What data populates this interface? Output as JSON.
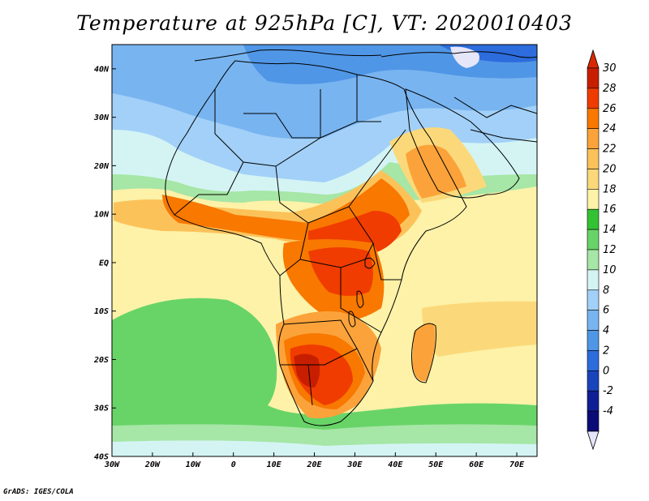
{
  "title": "Temperature at 925hPa [C], VT: 2020010403",
  "credit": "GrADS: IGES/COLA",
  "map": {
    "lon_range": [
      -30,
      75
    ],
    "lat_range": [
      -40,
      45
    ],
    "lon_ticks": [
      {
        "value": -30,
        "label": "30W"
      },
      {
        "value": -20,
        "label": "20W"
      },
      {
        "value": -10,
        "label": "10W"
      },
      {
        "value": 0,
        "label": "0"
      },
      {
        "value": 10,
        "label": "10E"
      },
      {
        "value": 20,
        "label": "20E"
      },
      {
        "value": 30,
        "label": "30E"
      },
      {
        "value": 40,
        "label": "40E"
      },
      {
        "value": 50,
        "label": "50E"
      },
      {
        "value": 60,
        "label": "60E"
      },
      {
        "value": 70,
        "label": "70E"
      }
    ],
    "lat_ticks": [
      {
        "value": 40,
        "label": "40N"
      },
      {
        "value": 30,
        "label": "30N"
      },
      {
        "value": 20,
        "label": "20N"
      },
      {
        "value": 10,
        "label": "10N"
      },
      {
        "value": 0,
        "label": "EQ"
      },
      {
        "value": -10,
        "label": "10S"
      },
      {
        "value": -20,
        "label": "20S"
      },
      {
        "value": -30,
        "label": "30S"
      },
      {
        "value": -40,
        "label": "40S"
      }
    ]
  },
  "colorbar": {
    "levels": [
      "30",
      "28",
      "26",
      "24",
      "22",
      "20",
      "18",
      "16",
      "14",
      "12",
      "10",
      "8",
      "6",
      "4",
      "2",
      "0",
      "-2",
      "-4"
    ],
    "colors": [
      "#c81e00",
      "#f03c00",
      "#f87800",
      "#fba33a",
      "#fcc25a",
      "#fbd97a",
      "#fdf2a8",
      "#33c233",
      "#68d468",
      "#a6e6a6",
      "#d4f4f4",
      "#a2d0f8",
      "#78b4f0",
      "#5096e6",
      "#2c6cdc",
      "#1a44bc",
      "#101e96",
      "#0c0c78"
    ],
    "top_arrow_color": "#dc2800",
    "bottom_arrow_color": "#e6e6fa"
  }
}
